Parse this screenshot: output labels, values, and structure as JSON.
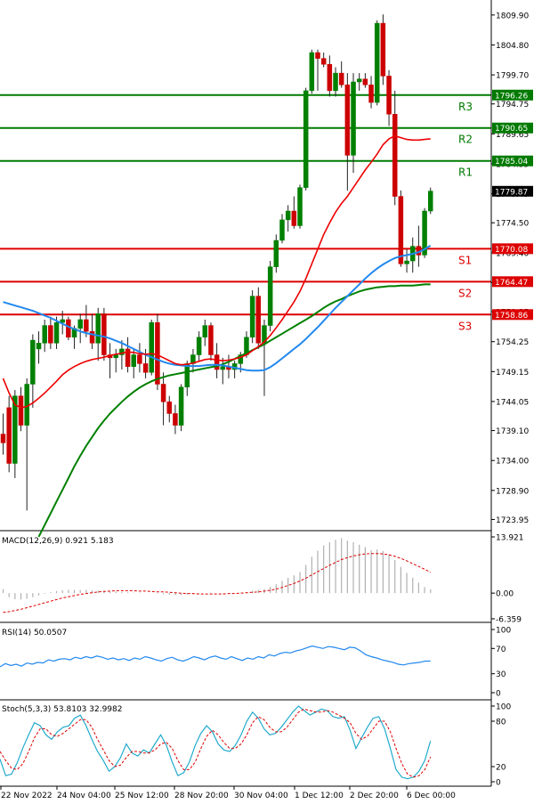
{
  "chart_data": [
    {
      "type": "candlestick",
      "title": "",
      "y_ticks": [
        "1809.90",
        "1804.80",
        "1799.70",
        "1794.75",
        "1789.65",
        "1784.55",
        "1779.45",
        "1774.50",
        "1769.40",
        "1764.30",
        "1759.35",
        "1754.25",
        "1749.15",
        "1744.05",
        "1739.10",
        "1734.00",
        "1728.90",
        "1723.95"
      ],
      "ylim": [
        1722.5,
        1812.0
      ],
      "x_ticks": [
        "22 Nov 2022",
        "24 Nov 04:00",
        "25 Nov 12:00",
        "28 Nov 20:00",
        "30 Nov 04:00",
        "1 Dec 12:00",
        "2 Dec 20:00",
        "6 Dec 00:00"
      ],
      "candles": [
        [
          1738.5,
          1742.0,
          1735.0,
          1737.0
        ],
        [
          1743.0,
          1745.0,
          1732.0,
          1733.5
        ],
        [
          1733.5,
          1746.0,
          1731.0,
          1745.0
        ],
        [
          1745.0,
          1746.5,
          1739.0,
          1740.0
        ],
        [
          1740.0,
          1748.0,
          1725.5,
          1747.0
        ],
        [
          1747.0,
          1755.5,
          1743.0,
          1754.5
        ],
        [
          1753.0,
          1756.0,
          1750.5,
          1754.0
        ],
        [
          1754.0,
          1758.0,
          1752.5,
          1757.0
        ],
        [
          1757.0,
          1758.5,
          1753.0,
          1754.0
        ],
        [
          1754.0,
          1758.5,
          1753.0,
          1757.5
        ],
        [
          1757.5,
          1759.5,
          1755.5,
          1758.0
        ],
        [
          1758.0,
          1758.5,
          1754.5,
          1755.0
        ],
        [
          1755.0,
          1757.0,
          1753.0,
          1756.5
        ],
        [
          1756.5,
          1759.0,
          1754.0,
          1758.0
        ],
        [
          1758.0,
          1760.5,
          1755.0,
          1756.0
        ],
        [
          1756.0,
          1759.0,
          1753.0,
          1754.0
        ],
        [
          1754.0,
          1760.0,
          1751.0,
          1759.0
        ],
        [
          1759.0,
          1760.0,
          1751.0,
          1752.0
        ],
        [
          1752.0,
          1754.0,
          1748.0,
          1751.5
        ],
        [
          1751.5,
          1753.0,
          1749.0,
          1752.0
        ],
        [
          1752.0,
          1754.5,
          1749.5,
          1753.0
        ],
        [
          1753.0,
          1755.0,
          1749.0,
          1750.0
        ],
        [
          1750.0,
          1753.0,
          1748.0,
          1752.0
        ],
        [
          1752.0,
          1754.0,
          1749.0,
          1750.5
        ],
        [
          1750.5,
          1753.0,
          1748.0,
          1749.0
        ],
        [
          1749.0,
          1758.0,
          1748.5,
          1757.5
        ],
        [
          1757.5,
          1759.0,
          1746.0,
          1747.0
        ],
        [
          1747.0,
          1749.0,
          1740.0,
          1744.0
        ],
        [
          1744.0,
          1745.0,
          1740.5,
          1742.0
        ],
        [
          1742.0,
          1743.5,
          1738.5,
          1740.0
        ],
        [
          1740.0,
          1747.0,
          1739.0,
          1746.5
        ],
        [
          1746.5,
          1751.0,
          1745.0,
          1750.5
        ],
        [
          1750.5,
          1753.0,
          1749.0,
          1752.0
        ],
        [
          1752.0,
          1756.0,
          1751.0,
          1755.0
        ],
        [
          1755.0,
          1758.0,
          1753.5,
          1757.0
        ],
        [
          1757.0,
          1757.5,
          1751.0,
          1752.0
        ],
        [
          1752.0,
          1754.0,
          1748.0,
          1749.5
        ],
        [
          1749.5,
          1751.5,
          1747.0,
          1750.0
        ],
        [
          1750.0,
          1752.0,
          1748.0,
          1749.5
        ],
        [
          1749.5,
          1751.0,
          1748.0,
          1750.5
        ],
        [
          1750.5,
          1752.5,
          1749.0,
          1752.0
        ],
        [
          1752.0,
          1756.0,
          1751.5,
          1755.0
        ],
        [
          1755.0,
          1763.0,
          1754.0,
          1762.0
        ],
        [
          1762.0,
          1763.5,
          1753.0,
          1754.0
        ],
        [
          1754.0,
          1758.0,
          1745.0,
          1757.0
        ],
        [
          1757.0,
          1768.0,
          1756.0,
          1767.0
        ],
        [
          1767.0,
          1772.5,
          1766.0,
          1771.5
        ],
        [
          1771.5,
          1776.0,
          1771.0,
          1775.0
        ],
        [
          1775.0,
          1777.5,
          1773.0,
          1776.5
        ],
        [
          1776.5,
          1779.0,
          1773.5,
          1774.0
        ],
        [
          1774.0,
          1781.0,
          1773.5,
          1780.5
        ],
        [
          1780.5,
          1797.5,
          1780.0,
          1797.0
        ],
        [
          1797.0,
          1804.0,
          1796.5,
          1803.5
        ],
        [
          1803.5,
          1804.0,
          1797.0,
          1802.5
        ],
        [
          1802.5,
          1803.5,
          1801.0,
          1801.5
        ],
        [
          1801.5,
          1803.0,
          1796.0,
          1797.0
        ],
        [
          1797.0,
          1801.0,
          1796.0,
          1800.0
        ],
        [
          1800.0,
          1802.0,
          1797.5,
          1798.0
        ],
        [
          1798.0,
          1800.0,
          1780.0,
          1786.0
        ],
        [
          1786.0,
          1800.0,
          1783.0,
          1798.5
        ],
        [
          1798.5,
          1800.0,
          1797.0,
          1799.0
        ],
        [
          1799.0,
          1800.0,
          1797.5,
          1798.0
        ],
        [
          1798.0,
          1799.5,
          1794.0,
          1795.0
        ],
        [
          1795.0,
          1809.0,
          1794.5,
          1808.5
        ],
        [
          1808.5,
          1810.0,
          1798.0,
          1799.5
        ],
        [
          1799.5,
          1800.5,
          1791.0,
          1793.0
        ],
        [
          1793.0,
          1797.0,
          1777.5,
          1779.0
        ],
        [
          1779.0,
          1780.0,
          1767.0,
          1767.5
        ],
        [
          1767.5,
          1770.0,
          1766.0,
          1768.0
        ],
        [
          1768.0,
          1772.0,
          1766.0,
          1770.5
        ],
        [
          1770.5,
          1774.0,
          1767.0,
          1769.0
        ],
        [
          1769.0,
          1777.0,
          1768.5,
          1776.5
        ],
        [
          1776.5,
          1780.5,
          1776.0,
          1779.9
        ]
      ],
      "ma_red": [
        1748.0,
        1745.5,
        1743.5,
        1743.0,
        1743.2,
        1743.8,
        1744.6,
        1745.5,
        1746.5,
        1747.5,
        1748.6,
        1749.4,
        1750.0,
        1750.5,
        1750.9,
        1751.2,
        1751.4,
        1751.6,
        1751.9,
        1752.1,
        1752.3,
        1752.5,
        1752.4,
        1752.2,
        1752.1,
        1752.2,
        1752.0,
        1751.5,
        1751.0,
        1750.5,
        1750.3,
        1750.4,
        1750.6,
        1750.9,
        1751.2,
        1751.3,
        1751.1,
        1751.0,
        1751.1,
        1751.3,
        1751.6,
        1752.0,
        1752.7,
        1753.4,
        1754.2,
        1755.3,
        1756.6,
        1758.0,
        1759.5,
        1761.0,
        1762.8,
        1765.0,
        1767.5,
        1770.0,
        1772.5,
        1774.5,
        1776.3,
        1777.8,
        1779.0,
        1780.5,
        1782.0,
        1783.5,
        1784.8,
        1786.2,
        1787.8,
        1788.8,
        1789.3,
        1789.0,
        1788.7,
        1788.6,
        1788.6,
        1788.7,
        1788.8
      ],
      "ma_blue": [
        1761.0,
        1760.7,
        1760.4,
        1760.1,
        1759.8,
        1759.5,
        1759.1,
        1758.7,
        1758.3,
        1757.8,
        1757.3,
        1756.8,
        1756.4,
        1756.0,
        1755.7,
        1755.5,
        1755.3,
        1755.1,
        1754.8,
        1754.4,
        1754.0,
        1753.5,
        1753.0,
        1752.5,
        1752.0,
        1751.6,
        1751.2,
        1750.8,
        1750.5,
        1750.3,
        1750.2,
        1750.1,
        1750.1,
        1750.1,
        1750.2,
        1750.3,
        1750.3,
        1750.2,
        1750.0,
        1749.8,
        1749.6,
        1749.4,
        1749.3,
        1749.3,
        1749.4,
        1749.9,
        1750.6,
        1751.4,
        1752.2,
        1753.0,
        1753.8,
        1754.7,
        1755.7,
        1756.7,
        1757.8,
        1758.9,
        1760.0,
        1761.0,
        1762.0,
        1763.0,
        1764.0,
        1765.0,
        1765.9,
        1766.7,
        1767.4,
        1768.0,
        1768.5,
        1768.8,
        1769.0,
        1769.2,
        1769.5,
        1770.0,
        1770.6
      ],
      "ma_green": [
        null,
        null,
        null,
        null,
        null,
        null,
        1721.0,
        1723.0,
        1725.0,
        1727.0,
        1729.0,
        1731.0,
        1733.0,
        1734.8,
        1736.5,
        1738.0,
        1739.5,
        1740.8,
        1742.0,
        1743.0,
        1744.0,
        1744.9,
        1745.7,
        1746.4,
        1747.0,
        1747.5,
        1747.9,
        1748.2,
        1748.5,
        1748.7,
        1748.9,
        1749.1,
        1749.3,
        1749.5,
        1749.7,
        1749.9,
        1750.1,
        1750.4,
        1750.8,
        1751.3,
        1751.8,
        1752.3,
        1752.8,
        1753.3,
        1753.8,
        1754.4,
        1755.0,
        1755.6,
        1756.2,
        1756.8,
        1757.4,
        1758.0,
        1758.6,
        1759.3,
        1760.0,
        1760.6,
        1761.1,
        1761.5,
        1762.0,
        1762.4,
        1762.8,
        1763.1,
        1763.3,
        1763.5,
        1763.6,
        1763.7,
        1763.7,
        1763.8,
        1763.8,
        1763.8,
        1763.9,
        1764.0,
        1764.0
      ],
      "levels": [
        {
          "name": "R3",
          "value": 1796.26,
          "label": "1796.26",
          "color": "#007a00"
        },
        {
          "name": "R2",
          "value": 1790.65,
          "label": "1790.65",
          "color": "#007a00"
        },
        {
          "name": "R1",
          "value": 1785.04,
          "label": "1785.04",
          "color": "#007a00"
        },
        {
          "name": "S1",
          "value": 1770.08,
          "label": "1770.08",
          "color": "#dd0000"
        },
        {
          "name": "S2",
          "value": 1764.47,
          "label": "1764.47",
          "color": "#dd0000"
        },
        {
          "name": "S3",
          "value": 1758.86,
          "label": "1758.86",
          "color": "#dd0000"
        }
      ],
      "current_price": "1779.87",
      "colors": {
        "bull": "#008000",
        "bear": "#cc0000",
        "ma_red": "#ee0000",
        "ma_blue": "#2288ee",
        "ma_green": "#008000"
      }
    },
    {
      "type": "histogram",
      "indicator": "MACD",
      "label": "MACD(12,26,9) 0.921 5.183",
      "y_ticks": [
        "13.921",
        "0.00",
        "-6.359"
      ],
      "ylim": [
        -6.359,
        13.921
      ],
      "values": [
        1.0,
        -1.0,
        -1.5,
        -1.6,
        -1.4,
        -1.0,
        -0.6,
        -0.2,
        0.2,
        0.5,
        0.7,
        0.8,
        0.8,
        0.8,
        0.8,
        0.7,
        0.6,
        0.5,
        0.4,
        0.4,
        0.3,
        0.2,
        0.1,
        0.1,
        0.0,
        0.0,
        -0.1,
        -0.3,
        -0.4,
        -0.5,
        -0.5,
        -0.4,
        -0.3,
        -0.1,
        0.0,
        0.1,
        0.0,
        -0.1,
        -0.1,
        0.0,
        0.1,
        0.3,
        0.6,
        0.8,
        1.0,
        1.6,
        2.2,
        3.0,
        3.8,
        4.4,
        5.2,
        7.0,
        9.0,
        10.5,
        11.8,
        12.6,
        13.2,
        13.6,
        13.0,
        12.6,
        12.0,
        11.4,
        10.6,
        10.8,
        10.4,
        9.6,
        8.2,
        6.5,
        5.0,
        3.8,
        2.6,
        1.5,
        0.92
      ],
      "signal": [
        -4.8,
        -4.6,
        -4.3,
        -4.0,
        -3.6,
        -3.2,
        -2.8,
        -2.4,
        -2.0,
        -1.6,
        -1.2,
        -0.9,
        -0.6,
        -0.3,
        -0.1,
        0.1,
        0.3,
        0.4,
        0.5,
        0.6,
        0.6,
        0.6,
        0.6,
        0.5,
        0.5,
        0.4,
        0.3,
        0.3,
        0.2,
        0.1,
        0.0,
        -0.1,
        -0.1,
        -0.2,
        -0.2,
        -0.2,
        -0.2,
        -0.2,
        -0.1,
        -0.1,
        0.0,
        0.1,
        0.2,
        0.3,
        0.5,
        0.7,
        1.0,
        1.4,
        1.9,
        2.4,
        3.0,
        3.7,
        4.5,
        5.3,
        6.1,
        6.9,
        7.6,
        8.3,
        8.8,
        9.2,
        9.5,
        9.7,
        9.8,
        9.8,
        9.7,
        9.5,
        9.1,
        8.6,
        8.0,
        7.3,
        6.6,
        5.9,
        5.18
      ]
    },
    {
      "type": "line",
      "indicator": "RSI",
      "label": "RSI(14) 50.0507",
      "y_ticks": [
        "100",
        "70",
        "30",
        "0"
      ],
      "ylim": [
        0,
        100
      ],
      "values": [
        41,
        46,
        43,
        45,
        42,
        47,
        45,
        48,
        47,
        52,
        50,
        53,
        54,
        52,
        56,
        54,
        57,
        55,
        58,
        56,
        53,
        55,
        52,
        54,
        51,
        55,
        53,
        57,
        55,
        52,
        50,
        54,
        56,
        52,
        50,
        53,
        57,
        55,
        52,
        56,
        58,
        55,
        53,
        57,
        54,
        51,
        55,
        53,
        57,
        55,
        60,
        58,
        62,
        64,
        63,
        66,
        68,
        71,
        74,
        72,
        70,
        73,
        72,
        70,
        68,
        72,
        71,
        66,
        60,
        57,
        55,
        52,
        50,
        48,
        45,
        44,
        46,
        47,
        48,
        50,
        50.05
      ]
    },
    {
      "type": "line",
      "indicator": "Stochastic",
      "label": "Stoch(5,3,3) 53.8103 32.9982",
      "y_ticks": [
        "100",
        "80",
        "20",
        "0"
      ],
      "ylim": [
        0,
        100
      ],
      "k": [
        30,
        8,
        10,
        25,
        45,
        62,
        78,
        74,
        62,
        56,
        66,
        72,
        74,
        84,
        88,
        74,
        56,
        40,
        28,
        14,
        20,
        32,
        50,
        38,
        34,
        42,
        38,
        50,
        62,
        48,
        26,
        8,
        12,
        26,
        48,
        64,
        74,
        66,
        50,
        42,
        40,
        48,
        62,
        80,
        92,
        84,
        70,
        62,
        64,
        72,
        82,
        92,
        100,
        94,
        88,
        92,
        96,
        94,
        86,
        84,
        86,
        68,
        44,
        58,
        72,
        84,
        86,
        70,
        44,
        16,
        6,
        4,
        6,
        14,
        28,
        53.81
      ],
      "d": [
        40,
        28,
        18,
        16,
        24,
        40,
        58,
        70,
        70,
        62,
        60,
        64,
        70,
        76,
        82,
        82,
        72,
        56,
        42,
        28,
        20,
        22,
        32,
        40,
        40,
        38,
        38,
        42,
        50,
        52,
        44,
        28,
        16,
        16,
        26,
        44,
        60,
        68,
        62,
        52,
        44,
        44,
        50,
        62,
        78,
        86,
        82,
        72,
        66,
        66,
        72,
        82,
        92,
        96,
        94,
        92,
        92,
        94,
        92,
        88,
        84,
        78,
        64,
        56,
        60,
        70,
        80,
        80,
        66,
        44,
        24,
        10,
        6,
        8,
        16,
        33.0
      ]
    }
  ]
}
